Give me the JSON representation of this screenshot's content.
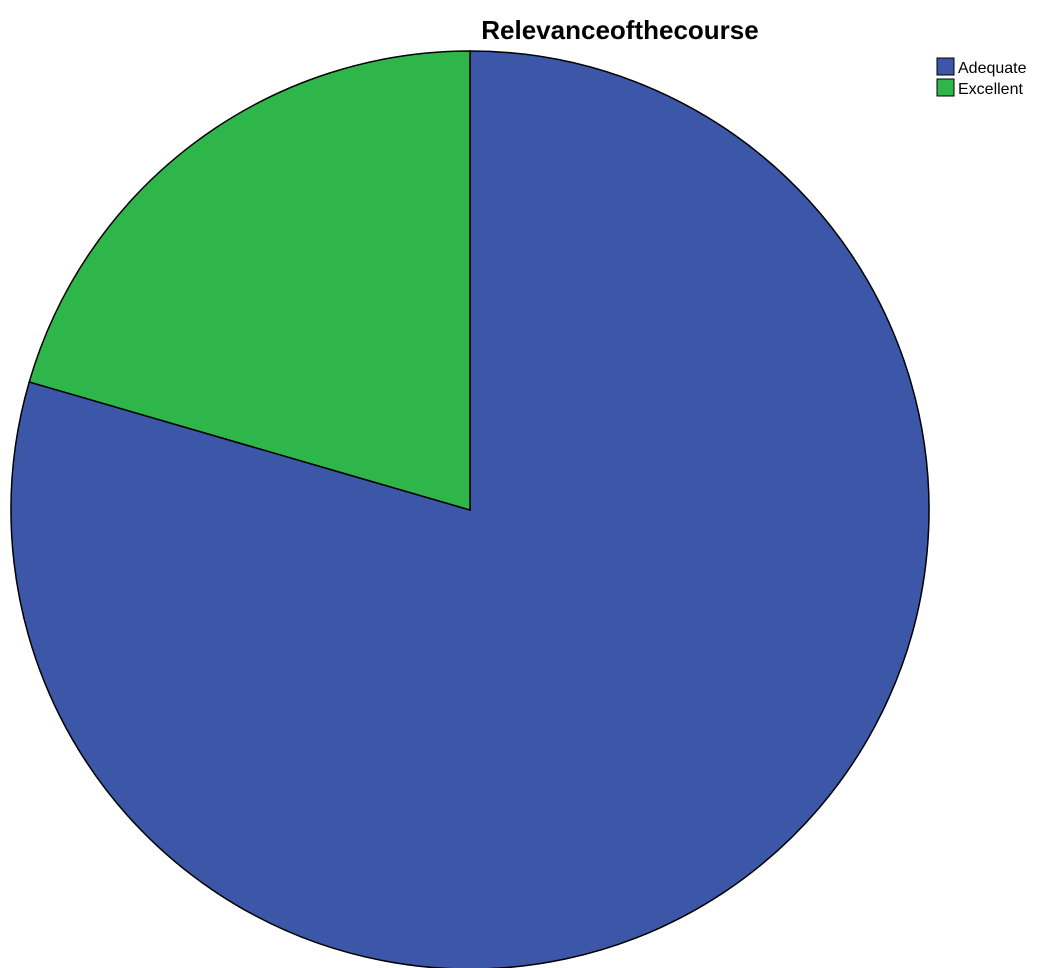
{
  "chart_data": {
    "type": "pie",
    "title": "Relevanceofthecourse",
    "categories": [
      "Adequate",
      "Excellent"
    ],
    "values": [
      79.5,
      20.5
    ],
    "colors": [
      "#3C57A8",
      "#2EB64A"
    ],
    "legend_position": "top-right",
    "start_angle": "12 o'clock",
    "direction": "clockwise"
  }
}
